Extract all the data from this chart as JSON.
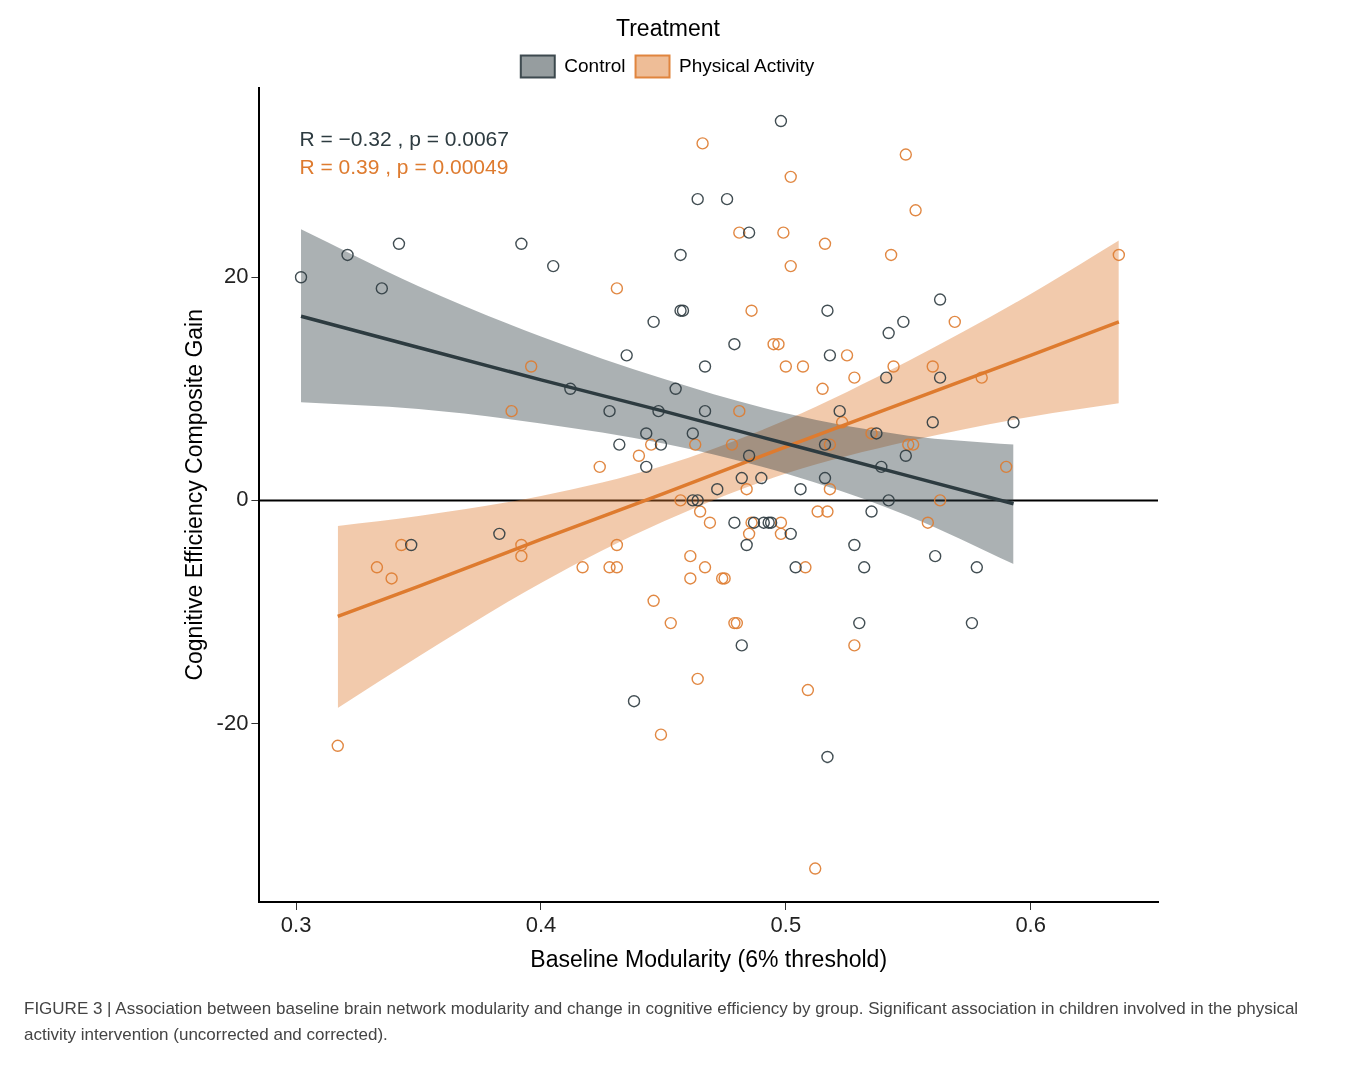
{
  "chart_data": {
    "type": "scatter",
    "xlabel": "Baseline Modularity (6% threshold)",
    "ylabel": "Cognitive Efficiency Composite Gain",
    "legend_title": "Treatment",
    "legend": "top",
    "grid": false,
    "xlim": [
      0.285,
      0.652
    ],
    "ylim": [
      -36,
      37
    ],
    "xticks": [
      0.3,
      0.4,
      0.5,
      0.6
    ],
    "yticks": [
      -20,
      0,
      20
    ],
    "ref_lines": [
      {
        "axis": "y",
        "value": 0,
        "color": "#000000"
      }
    ],
    "annotations": [
      "R = −0.32 , p = 0.0067",
      "R = 0.39 , p = 0.00049",
      "FIGURE 3 | Association between baseline brain network modularity and change in cognitive efficiency by group. Significant association in children involved in the physical activity intervention (uncorrected and corrected)."
    ],
    "series": [
      {
        "name": "Control",
        "color": "#2d3b40",
        "marker": "circle",
        "x": [
          0.302,
          0.321,
          0.335,
          0.342,
          0.347,
          0.383,
          0.392,
          0.405,
          0.412,
          0.428,
          0.432,
          0.435,
          0.438,
          0.443,
          0.443,
          0.446,
          0.448,
          0.449,
          0.455,
          0.457,
          0.457,
          0.458,
          0.462,
          0.462,
          0.464,
          0.464,
          0.467,
          0.467,
          0.472,
          0.476,
          0.479,
          0.479,
          0.482,
          0.482,
          0.484,
          0.485,
          0.485,
          0.487,
          0.49,
          0.491,
          0.493,
          0.494,
          0.498,
          0.502,
          0.504,
          0.506,
          0.516,
          0.516,
          0.517,
          0.517,
          0.518,
          0.522,
          0.528,
          0.53,
          0.532,
          0.535,
          0.537,
          0.539,
          0.541,
          0.542,
          0.542,
          0.548,
          0.549,
          0.56,
          0.561,
          0.563,
          0.563,
          0.576,
          0.578,
          0.593
        ],
        "values": [
          20,
          22,
          19,
          23,
          -4,
          -3,
          23,
          21,
          10,
          8,
          5,
          13,
          -18,
          6,
          3,
          16,
          8,
          5,
          10,
          22,
          17,
          17,
          6,
          0,
          0,
          27,
          12,
          8,
          1,
          27,
          -2,
          14,
          -13,
          2,
          -4,
          24,
          4,
          -2,
          2,
          -2,
          -2,
          -2,
          34,
          -3,
          -6,
          1,
          5,
          2,
          17,
          -23,
          13,
          8,
          -4,
          -11,
          -6,
          -1,
          6,
          3,
          11,
          15,
          0,
          16,
          4,
          7,
          -5,
          18,
          11,
          -11,
          -6,
          7
        ]
      },
      {
        "name": "Physical Activity",
        "color": "#de7b2f",
        "marker": "circle",
        "x": [
          0.317,
          0.333,
          0.339,
          0.343,
          0.388,
          0.392,
          0.392,
          0.396,
          0.417,
          0.424,
          0.428,
          0.431,
          0.431,
          0.431,
          0.44,
          0.445,
          0.446,
          0.449,
          0.453,
          0.457,
          0.461,
          0.461,
          0.463,
          0.464,
          0.465,
          0.466,
          0.467,
          0.469,
          0.474,
          0.475,
          0.478,
          0.479,
          0.48,
          0.481,
          0.481,
          0.484,
          0.485,
          0.486,
          0.486,
          0.495,
          0.497,
          0.498,
          0.498,
          0.499,
          0.5,
          0.502,
          0.502,
          0.507,
          0.508,
          0.509,
          0.512,
          0.513,
          0.515,
          0.516,
          0.517,
          0.518,
          0.518,
          0.523,
          0.525,
          0.528,
          0.528,
          0.535,
          0.543,
          0.544,
          0.549,
          0.55,
          0.552,
          0.553,
          0.558,
          0.56,
          0.563,
          0.569,
          0.58,
          0.59,
          0.636
        ],
        "values": [
          -22,
          -6,
          -7,
          -4,
          8,
          -4,
          -5,
          12,
          -6,
          3,
          -6,
          19,
          -4,
          -6,
          4,
          5,
          -9,
          -21,
          -11,
          0,
          -5,
          -7,
          5,
          -16,
          -1,
          32,
          -6,
          -2,
          -7,
          -7,
          5,
          -11,
          -11,
          8,
          24,
          1,
          -3,
          -2,
          17,
          14,
          14,
          -2,
          -3,
          24,
          12,
          29,
          21,
          12,
          -6,
          -17,
          -33,
          -1,
          10,
          23,
          -1,
          5,
          1,
          7,
          13,
          -13,
          11,
          6,
          22,
          12,
          31,
          5,
          5,
          26,
          -2,
          12,
          0,
          16,
          11,
          3,
          22
        ]
      },
      {
        "type": "line",
        "color": "#2d3b40",
        "marker": "none",
        "x": [
          0.302,
          0.35,
          0.4,
          0.45,
          0.5,
          0.55,
          0.593
        ],
        "values": [
          16.5,
          13.7,
          10.8,
          8,
          5.1,
          2.2,
          -0.3
        ],
        "lower": [
          8.8,
          8.2,
          6.9,
          5.1,
          2.4,
          -1.4,
          -5.7
        ],
        "upper": [
          24.3,
          19.2,
          14.7,
          10.9,
          7.8,
          5.8,
          5
        ]
      },
      {
        "type": "line",
        "color": "#de7b2f",
        "marker": "none",
        "x": [
          0.317,
          0.35,
          0.4,
          0.45,
          0.5,
          0.55,
          0.6,
          0.636
        ],
        "values": [
          -10.4,
          -7.7,
          -3.5,
          0.6,
          4.8,
          8.9,
          13,
          16
        ],
        "lower": [
          -18.6,
          -14,
          -7.4,
          -1.9,
          2.4,
          5.3,
          7.5,
          8.7
        ],
        "upper": [
          -2.3,
          -1.4,
          0.4,
          3.1,
          7.2,
          12.5,
          18.5,
          23.3
        ]
      }
    ]
  }
}
